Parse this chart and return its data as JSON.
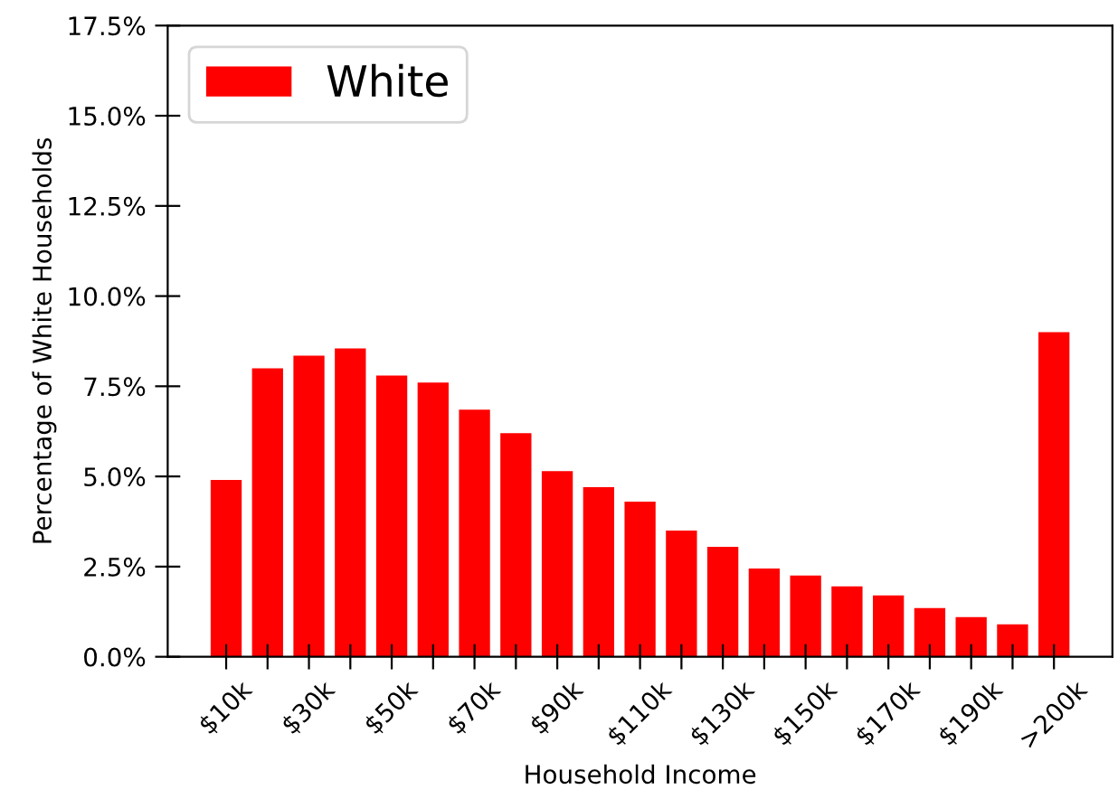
{
  "chart_data": {
    "type": "bar",
    "xlabel": "Household Income",
    "ylabel": "Percentage of White Households",
    "categories": [
      "$10k",
      null,
      "$30k",
      null,
      "$50k",
      null,
      "$70k",
      null,
      "$90k",
      null,
      "$110k",
      null,
      "$130k",
      null,
      "$150k",
      null,
      "$170k",
      null,
      "$190k",
      null,
      ">200k"
    ],
    "series": [
      {
        "name": "White",
        "color": "#ff0000",
        "values": [
          4.9,
          8.0,
          8.35,
          8.55,
          7.8,
          7.6,
          6.85,
          6.2,
          5.15,
          4.7,
          4.3,
          3.5,
          3.05,
          2.45,
          2.25,
          1.95,
          1.7,
          1.35,
          1.1,
          0.9,
          9.0
        ]
      }
    ],
    "ylim": [
      0,
      17.5
    ],
    "yticks": [
      {
        "value": 0,
        "label": "0.0%"
      },
      {
        "value": 2.5,
        "label": "2.5%"
      },
      {
        "value": 5,
        "label": "5.0%"
      },
      {
        "value": 7.5,
        "label": "7.5%"
      },
      {
        "value": 10,
        "label": "10.0%"
      },
      {
        "value": 12.5,
        "label": "12.5%"
      },
      {
        "value": 15,
        "label": "15.0%"
      },
      {
        "value": 17.5,
        "label": "17.5%"
      }
    ],
    "legend": "top left",
    "grid": false
  }
}
